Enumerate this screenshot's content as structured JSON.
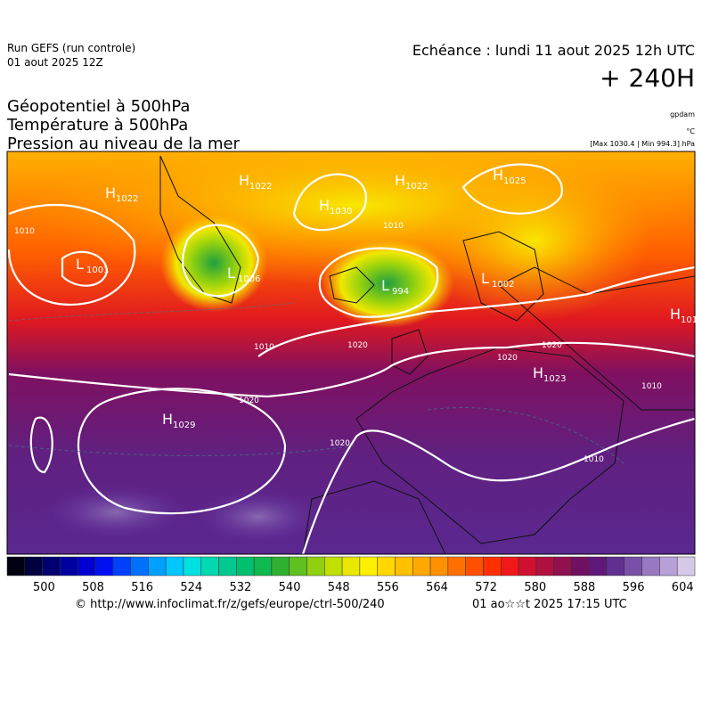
{
  "header": {
    "run": "Run GEFS (run controle)",
    "run_date": "01 aout 2025 12Z",
    "valid": "Echéance : lundi 11 aout 2025 12h UTC",
    "lead": "+ 240H",
    "fields": [
      "Géopotentiel à 500hPa",
      "Température à 500hPa",
      "Pression au niveau de la mer"
    ],
    "units": [
      "gpdam",
      "°C",
      "[Max 1030.4 | Min 994.3] hPa"
    ]
  },
  "map": {
    "centers": [
      {
        "kind": "H",
        "value": "1022"
      },
      {
        "kind": "H",
        "value": "1022"
      },
      {
        "kind": "H",
        "value": "1030"
      },
      {
        "kind": "H",
        "value": "1022"
      },
      {
        "kind": "H",
        "value": "1025"
      },
      {
        "kind": "L",
        "value": "1001"
      },
      {
        "kind": "L",
        "value": "1006"
      },
      {
        "kind": "L",
        "value": "994"
      },
      {
        "kind": "L",
        "value": "1002"
      },
      {
        "kind": "H",
        "value": "1029"
      },
      {
        "kind": "H",
        "value": "1023"
      },
      {
        "kind": "H",
        "value": "101"
      }
    ],
    "isobar_labels": [
      "1010",
      "1010",
      "1020",
      "1020",
      "1010",
      "1020",
      "1020",
      "1010",
      "1020",
      "1010"
    ]
  },
  "colorbar": {
    "range": [
      494,
      606
    ],
    "ticks": [
      500,
      508,
      516,
      524,
      532,
      540,
      548,
      556,
      564,
      572,
      580,
      588,
      596,
      604
    ],
    "colors": [
      "#000010",
      "#000040",
      "#000070",
      "#0000a0",
      "#0000d0",
      "#0010f0",
      "#0040ff",
      "#0070ff",
      "#00a0ff",
      "#00c8ff",
      "#00e0e0",
      "#00d8b0",
      "#00c890",
      "#00c070",
      "#10b850",
      "#30b030",
      "#60c020",
      "#90d010",
      "#c0e000",
      "#e8e800",
      "#fff000",
      "#ffd800",
      "#ffc000",
      "#ffa800",
      "#ff9000",
      "#ff7000",
      "#ff5000",
      "#ff3000",
      "#f01818",
      "#d01030",
      "#b01040",
      "#901050",
      "#701060",
      "#601878",
      "#603090",
      "#7850a8",
      "#9878c0",
      "#b8a0d8",
      "#d8c8e8"
    ]
  },
  "footer": {
    "source": "© http://www.infoclimat.fr/z/gefs/europe/ctrl-500/240",
    "generated": "01 ao☆☆t 2025 17:15 UTC"
  }
}
